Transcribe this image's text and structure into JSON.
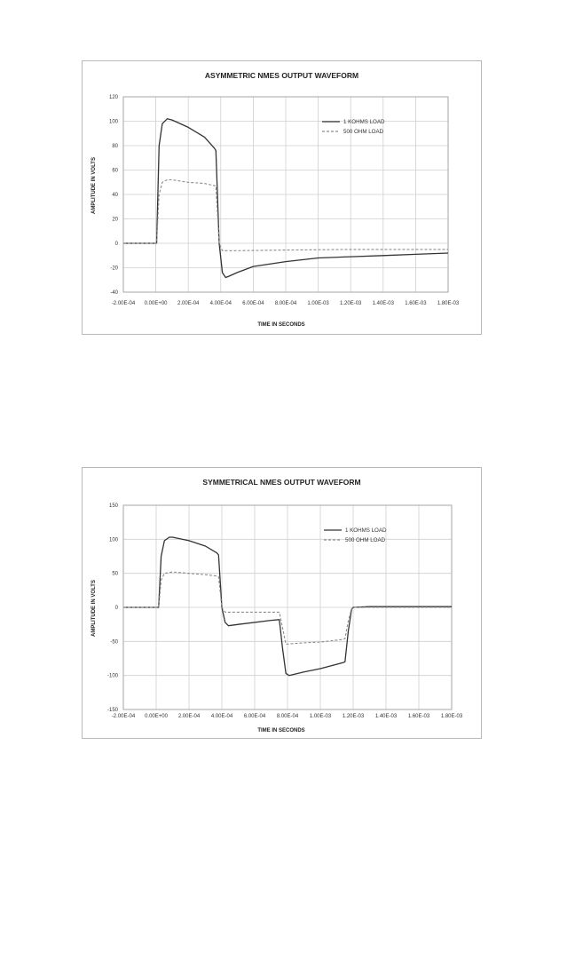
{
  "chart_data": [
    {
      "type": "line",
      "title": "ASYMMETRIC NMES OUTPUT WAVEFORM",
      "xlabel": "TIME IN SECONDS",
      "ylabel": "AMPLITUDE IN VOLTS",
      "xlim": [
        -0.0002,
        0.0018
      ],
      "ylim": [
        -40,
        120
      ],
      "x_tick_values": [
        -0.0002,
        0,
        0.0002,
        0.0004,
        0.0006,
        0.0008,
        0.001,
        0.0012,
        0.0014,
        0.0016,
        0.0018
      ],
      "x_tick_labels": [
        "-2.00E-04",
        "0.00E+00",
        "2.00E-04",
        "4.00E-04",
        "6.00E-04",
        "8.00E-04",
        "1.00E-03",
        "1.20E-03",
        "1.40E-03",
        "1.60E-03",
        "1.80E-03"
      ],
      "y_tick_values": [
        -40,
        -20,
        0,
        20,
        40,
        60,
        80,
        100,
        120
      ],
      "y_tick_labels": [
        "-40",
        "-20",
        "0",
        "20",
        "40",
        "60",
        "80",
        "100",
        "120"
      ],
      "grid": true,
      "legend_position": "top-right",
      "series": [
        {
          "name": "1 KOHMS LOAD",
          "color": "#333333",
          "dash": "solid",
          "x": [
            -0.0002,
            -1e-05,
            5e-06,
            2e-05,
            4e-05,
            7e-05,
            0.0001,
            0.0002,
            0.0003,
            0.00036,
            0.00037,
            0.00039,
            0.00041,
            0.00043,
            0.00045,
            0.0005,
            0.0006,
            0.0008,
            0.001,
            0.0012,
            0.0014,
            0.0016,
            0.0018
          ],
          "values": [
            0,
            0,
            0,
            80,
            98,
            102,
            101,
            95,
            87,
            78,
            76,
            0,
            -24,
            -28,
            -27,
            -24,
            -19,
            -15,
            -12,
            -11,
            -10,
            -9,
            -8
          ]
        },
        {
          "name": "500 OHM LOAD",
          "color": "#8c8c8c",
          "dash": "dashed",
          "x": [
            -0.0002,
            -1e-05,
            5e-06,
            2e-05,
            4e-05,
            7e-05,
            0.0001,
            0.0002,
            0.0003,
            0.00037,
            0.00039,
            0.00041,
            0.00043,
            0.0005,
            0.0008,
            0.0012,
            0.0016,
            0.0018
          ],
          "values": [
            0,
            0,
            0,
            40,
            50,
            52,
            52,
            50,
            49,
            47,
            0,
            -6,
            -6,
            -6,
            -5.5,
            -5,
            -5,
            -5
          ]
        }
      ]
    },
    {
      "type": "line",
      "title": "SYMMETRICAL NMES OUTPUT WAVEFORM",
      "xlabel": "TIME IN SECONDS",
      "ylabel": "AMPLITUDE IN VOLTS",
      "xlim": [
        -0.0002,
        0.0018
      ],
      "ylim": [
        -150,
        150
      ],
      "x_tick_values": [
        -0.0002,
        0,
        0.0002,
        0.0004,
        0.0006,
        0.0008,
        0.001,
        0.0012,
        0.0014,
        0.0016,
        0.0018
      ],
      "x_tick_labels": [
        "-2.00E-04",
        "0.00E+00",
        "2.00E-04",
        "4.00E-04",
        "6.00E-04",
        "8.00E-04",
        "1.00E-03",
        "1.20E-03",
        "1.40E-03",
        "1.60E-03",
        "1.80E-03"
      ],
      "y_tick_values": [
        -150,
        -100,
        -50,
        0,
        50,
        100,
        150
      ],
      "y_tick_labels": [
        "-150",
        "-100",
        "-50",
        "0",
        "50",
        "100",
        "150"
      ],
      "grid": true,
      "legend_position": "top-right",
      "series": [
        {
          "name": "1 KOHMS LOAD",
          "color": "#333333",
          "dash": "solid",
          "x": [
            -0.0002,
            0.0,
            1.5e-05,
            3e-05,
            5e-05,
            8e-05,
            0.0001,
            0.0002,
            0.0003,
            0.00037,
            0.00038,
            0.0004,
            0.00042,
            0.00044,
            0.0005,
            0.0007,
            0.00075,
            0.00077,
            0.00079,
            0.00081,
            0.0009,
            0.001,
            0.00114,
            0.00115,
            0.00117,
            0.00119,
            0.0012,
            0.0013,
            0.0018
          ],
          "values": [
            0,
            0,
            0,
            75,
            98,
            103,
            103,
            98,
            90,
            80,
            77,
            0,
            -22,
            -27,
            -25,
            -19,
            -18,
            -60,
            -97,
            -100,
            -95,
            -90,
            -81,
            -80,
            -35,
            -3,
            0,
            1,
            1
          ]
        },
        {
          "name": "500 OHM LOAD",
          "color": "#8c8c8c",
          "dash": "dashed",
          "x": [
            -0.0002,
            0.0,
            1.5e-05,
            3e-05,
            5e-05,
            0.0001,
            0.0002,
            0.0003,
            0.00037,
            0.00038,
            0.0004,
            0.00042,
            0.0005,
            0.0007,
            0.00075,
            0.00077,
            0.00079,
            0.0009,
            0.001,
            0.00114,
            0.00115,
            0.00117,
            0.00119,
            0.0012,
            0.0018
          ],
          "values": [
            0,
            0,
            0,
            40,
            50,
            52,
            50,
            48,
            46,
            45,
            0,
            -7,
            -7,
            -7,
            -7,
            -30,
            -54,
            -52,
            -51,
            -47,
            -46,
            -20,
            -2,
            0,
            0
          ]
        }
      ]
    }
  ]
}
